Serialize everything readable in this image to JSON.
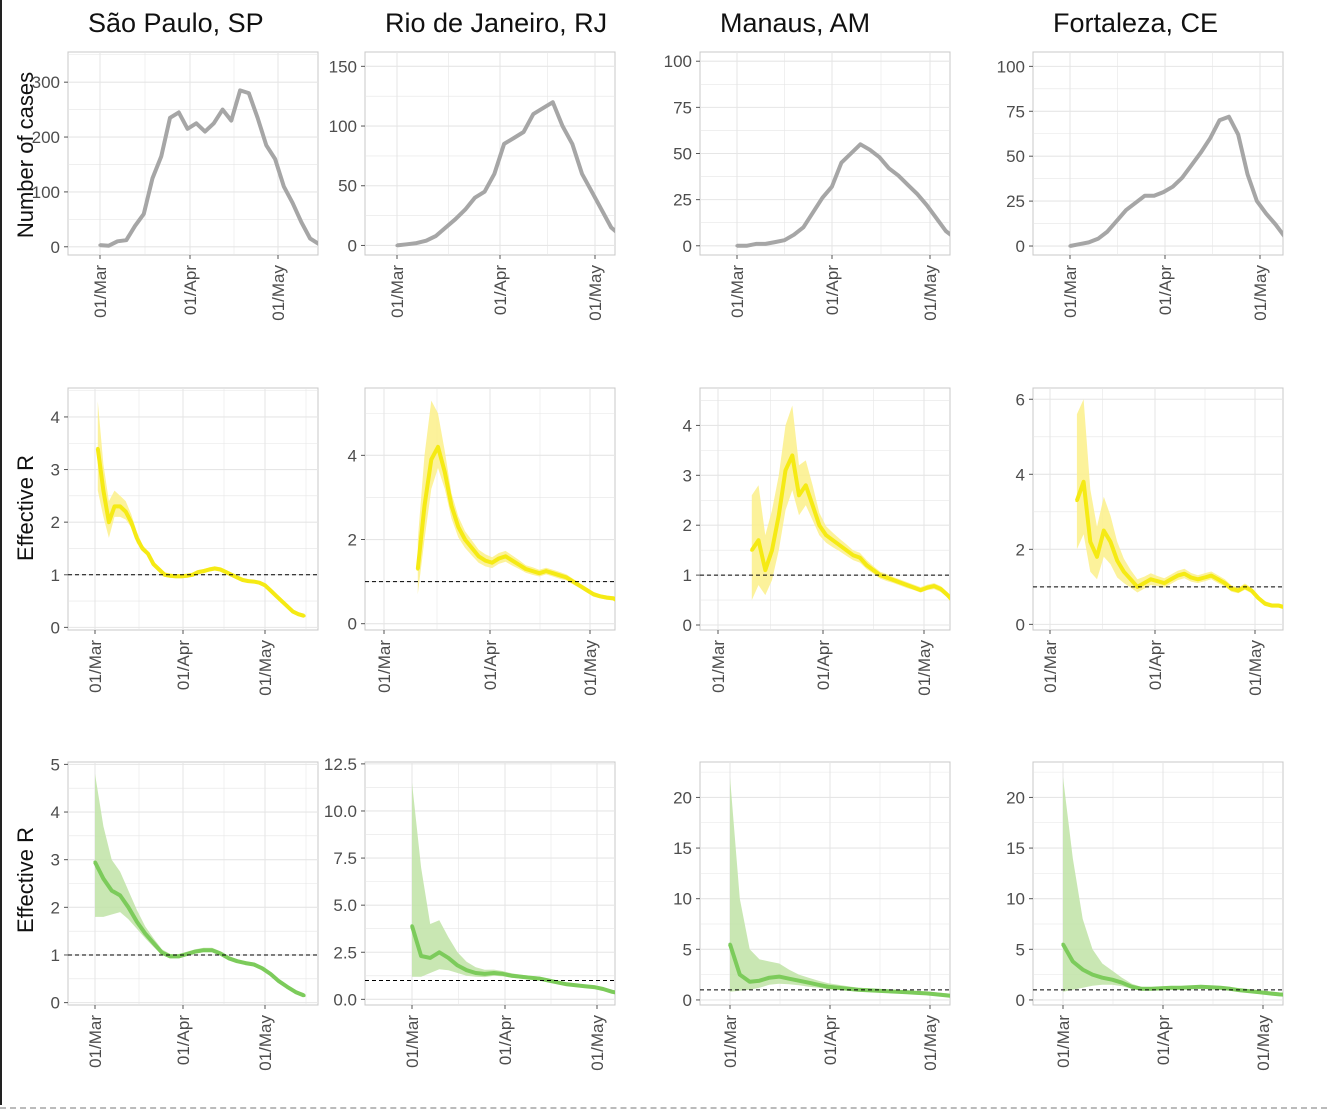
{
  "cities": [
    "São Paulo, SP",
    "Rio de Janeiro, RJ",
    "Manaus, AM",
    "Fortaleza, CE"
  ],
  "row_labels": [
    "Number of cases",
    "Effective R",
    "Effective R"
  ],
  "x_ticks": [
    "01/Mar",
    "01/Apr",
    "01/May"
  ],
  "colors": {
    "cases_line": "#a6a6a6",
    "r_yellow_line": "#f5ea14",
    "r_yellow_band": "#fbf08a",
    "r_green_line": "#7ccb5b",
    "r_green_band": "#bfe3a6",
    "grid": "#e6e6e6",
    "panel_border": "#c8c8c8",
    "reference_line": "#000000"
  },
  "chart_data": [
    {
      "type": "line",
      "row": 0,
      "city": "São Paulo, SP",
      "ylabel": "Number of cases",
      "ylim": [
        -15,
        355
      ],
      "yticks": [
        0,
        100,
        200,
        300
      ],
      "x": [
        0,
        3,
        6,
        9,
        12,
        15,
        18,
        21,
        24,
        27,
        30,
        33,
        36,
        39,
        42,
        45,
        48,
        51,
        54,
        57,
        60,
        63,
        66,
        69,
        72,
        75
      ],
      "values": [
        3,
        2,
        10,
        12,
        38,
        60,
        125,
        165,
        235,
        245,
        215,
        225,
        210,
        225,
        250,
        230,
        285,
        280,
        235,
        185,
        160,
        110,
        80,
        45,
        15,
        5
      ]
    },
    {
      "type": "line",
      "row": 0,
      "city": "Rio de Janeiro, RJ",
      "ylim": [
        -8,
        162
      ],
      "yticks": [
        0,
        50,
        100,
        150
      ],
      "x": [
        0,
        3,
        6,
        9,
        12,
        15,
        18,
        21,
        24,
        27,
        30,
        33,
        36,
        39,
        42,
        45,
        48,
        51,
        54,
        57,
        60,
        63,
        66,
        69,
        72,
        75
      ],
      "values": [
        0,
        1,
        2,
        4,
        8,
        15,
        22,
        30,
        40,
        45,
        60,
        85,
        90,
        95,
        110,
        115,
        120,
        100,
        85,
        60,
        45,
        30,
        15,
        8,
        4,
        2
      ]
    },
    {
      "type": "line",
      "row": 0,
      "city": "Manaus, AM",
      "ylim": [
        -5,
        105
      ],
      "yticks": [
        0,
        25,
        50,
        75,
        100
      ],
      "x": [
        0,
        3,
        6,
        9,
        12,
        15,
        18,
        21,
        24,
        27,
        30,
        33,
        36,
        39,
        42,
        45,
        48,
        51,
        54,
        57,
        60,
        63,
        66,
        69,
        72,
        75
      ],
      "values": [
        0,
        0,
        1,
        1,
        2,
        3,
        6,
        10,
        18,
        26,
        32,
        45,
        50,
        55,
        52,
        48,
        42,
        38,
        33,
        28,
        22,
        15,
        8,
        4,
        2,
        1
      ]
    },
    {
      "type": "line",
      "row": 0,
      "city": "Fortaleza, CE",
      "ylim": [
        -5,
        108
      ],
      "yticks": [
        0,
        25,
        50,
        75,
        100
      ],
      "x": [
        0,
        3,
        6,
        9,
        12,
        15,
        18,
        21,
        24,
        27,
        30,
        33,
        36,
        39,
        42,
        45,
        48,
        51,
        54,
        57,
        60,
        63,
        66,
        69,
        72,
        75
      ],
      "values": [
        0,
        1,
        2,
        4,
        8,
        14,
        20,
        24,
        28,
        28,
        30,
        33,
        38,
        45,
        52,
        60,
        70,
        72,
        62,
        40,
        25,
        18,
        12,
        5,
        2,
        1
      ]
    },
    {
      "type": "area",
      "row": 1,
      "city": "São Paulo, SP",
      "ylabel": "Effective R",
      "ylim": [
        -0.05,
        4.55
      ],
      "yticks": [
        0,
        1,
        2,
        3,
        4
      ],
      "ref": 1,
      "x": [
        1,
        3,
        5,
        7,
        9,
        11,
        13,
        15,
        17,
        19,
        21,
        23,
        25,
        27,
        29,
        31,
        33,
        35,
        37,
        39,
        41,
        43,
        45,
        47,
        49,
        51,
        53,
        55,
        57,
        59,
        61,
        63,
        65,
        67,
        69,
        71,
        73,
        75
      ],
      "values": [
        3.4,
        2.6,
        2.0,
        2.3,
        2.3,
        2.2,
        2.0,
        1.7,
        1.5,
        1.4,
        1.2,
        1.1,
        1.0,
        0.98,
        0.97,
        0.97,
        0.98,
        1.0,
        1.05,
        1.07,
        1.1,
        1.12,
        1.1,
        1.05,
        1.0,
        0.95,
        0.9,
        0.88,
        0.87,
        0.85,
        0.8,
        0.7,
        0.6,
        0.5,
        0.4,
        0.3,
        0.25,
        0.22
      ],
      "lower": [
        2.6,
        2.1,
        1.7,
        2.1,
        2.1,
        2.05,
        1.9,
        1.6,
        1.45,
        1.35,
        1.15,
        1.06,
        0.96,
        0.94,
        0.93,
        0.93,
        0.94,
        0.97,
        1.01,
        1.03,
        1.06,
        1.08,
        1.06,
        1.01,
        0.97,
        0.92,
        0.87,
        0.85,
        0.84,
        0.82,
        0.77,
        0.67,
        0.57,
        0.47,
        0.37,
        0.27,
        0.21,
        0.18
      ],
      "upper": [
        4.3,
        3.1,
        2.4,
        2.6,
        2.5,
        2.4,
        2.15,
        1.82,
        1.57,
        1.45,
        1.26,
        1.15,
        1.05,
        1.02,
        1.01,
        1.01,
        1.02,
        1.04,
        1.09,
        1.11,
        1.14,
        1.16,
        1.14,
        1.09,
        1.04,
        0.98,
        0.93,
        0.91,
        0.9,
        0.88,
        0.83,
        0.73,
        0.63,
        0.53,
        0.43,
        0.33,
        0.29,
        0.26
      ]
    },
    {
      "type": "area",
      "row": 1,
      "city": "Rio de Janeiro, RJ",
      "ylim": [
        -0.15,
        5.6
      ],
      "yticks": [
        0,
        2,
        4
      ],
      "ref": 1,
      "x": [
        10,
        12,
        14,
        16,
        18,
        20,
        22,
        24,
        26,
        28,
        30,
        32,
        34,
        36,
        38,
        40,
        42,
        44,
        46,
        48,
        50,
        52,
        54,
        56,
        58,
        60,
        62,
        64,
        66,
        68,
        70,
        72,
        74,
        76
      ],
      "values": [
        1.3,
        2.8,
        3.9,
        4.2,
        3.6,
        2.8,
        2.3,
        2.0,
        1.8,
        1.6,
        1.5,
        1.45,
        1.55,
        1.6,
        1.5,
        1.4,
        1.3,
        1.25,
        1.2,
        1.25,
        1.2,
        1.15,
        1.1,
        1.0,
        0.9,
        0.8,
        0.7,
        0.65,
        0.62,
        0.6,
        0.5,
        0.3,
        0.2,
        0.18
      ],
      "lower": [
        0.7,
        2.0,
        3.2,
        3.7,
        3.2,
        2.5,
        2.05,
        1.8,
        1.62,
        1.45,
        1.36,
        1.32,
        1.42,
        1.47,
        1.38,
        1.3,
        1.21,
        1.16,
        1.12,
        1.17,
        1.12,
        1.07,
        1.03,
        0.93,
        0.84,
        0.74,
        0.64,
        0.6,
        0.57,
        0.55,
        0.45,
        0.25,
        0.15,
        0.13
      ],
      "upper": [
        2.0,
        4.0,
        5.3,
        5.0,
        4.1,
        3.1,
        2.55,
        2.2,
        1.98,
        1.76,
        1.65,
        1.58,
        1.68,
        1.73,
        1.62,
        1.51,
        1.39,
        1.34,
        1.28,
        1.33,
        1.28,
        1.23,
        1.17,
        1.07,
        0.96,
        0.86,
        0.76,
        0.7,
        0.67,
        0.65,
        0.55,
        0.35,
        0.25,
        0.23
      ]
    },
    {
      "type": "area",
      "row": 1,
      "city": "Manaus, AM",
      "ylim": [
        -0.1,
        4.75
      ],
      "yticks": [
        0,
        1,
        2,
        3,
        4
      ],
      "ref": 1,
      "x": [
        10,
        12,
        14,
        16,
        18,
        20,
        22,
        24,
        26,
        28,
        30,
        32,
        34,
        36,
        38,
        40,
        42,
        44,
        46,
        48,
        50,
        52,
        54,
        56,
        58,
        60,
        62,
        64,
        66,
        68,
        70,
        72,
        74,
        76
      ],
      "values": [
        1.5,
        1.7,
        1.1,
        1.5,
        2.2,
        3.1,
        3.4,
        2.6,
        2.8,
        2.4,
        2.0,
        1.8,
        1.7,
        1.6,
        1.5,
        1.4,
        1.35,
        1.2,
        1.1,
        1.0,
        0.95,
        0.9,
        0.85,
        0.8,
        0.75,
        0.7,
        0.75,
        0.78,
        0.72,
        0.6,
        0.45,
        0.3,
        0.28,
        0.25
      ],
      "lower": [
        0.5,
        0.8,
        0.6,
        0.9,
        1.5,
        2.3,
        2.7,
        2.2,
        2.4,
        2.1,
        1.8,
        1.65,
        1.56,
        1.48,
        1.39,
        1.3,
        1.25,
        1.12,
        1.03,
        0.93,
        0.88,
        0.84,
        0.79,
        0.74,
        0.7,
        0.65,
        0.7,
        0.72,
        0.66,
        0.55,
        0.4,
        0.22,
        0.2,
        0.15
      ],
      "upper": [
        2.6,
        2.8,
        1.8,
        2.3,
        3.0,
        4.0,
        4.4,
        3.2,
        3.3,
        2.8,
        2.25,
        1.98,
        1.85,
        1.73,
        1.62,
        1.5,
        1.45,
        1.3,
        1.18,
        1.07,
        1.02,
        0.96,
        0.91,
        0.86,
        0.81,
        0.76,
        0.81,
        0.84,
        0.78,
        0.66,
        0.5,
        0.38,
        0.36,
        0.35
      ]
    },
    {
      "type": "area",
      "row": 1,
      "city": "Fortaleza, CE",
      "ylim": [
        -0.15,
        6.3
      ],
      "yticks": [
        0,
        2,
        4,
        6
      ],
      "ref": 1,
      "x": [
        8,
        10,
        12,
        14,
        16,
        18,
        20,
        22,
        24,
        26,
        28,
        30,
        32,
        34,
        36,
        38,
        40,
        42,
        44,
        46,
        48,
        50,
        52,
        54,
        56,
        58,
        60,
        62,
        64,
        66,
        68,
        70,
        72,
        74
      ],
      "values": [
        3.3,
        3.8,
        2.2,
        1.8,
        2.5,
        2.2,
        1.7,
        1.4,
        1.2,
        1.0,
        1.1,
        1.2,
        1.15,
        1.1,
        1.2,
        1.3,
        1.35,
        1.25,
        1.2,
        1.25,
        1.3,
        1.2,
        1.1,
        0.95,
        0.9,
        1.0,
        0.9,
        0.7,
        0.55,
        0.5,
        0.5,
        0.45,
        0.35,
        0.3
      ],
      "lower": [
        2.0,
        2.4,
        1.4,
        1.2,
        1.8,
        1.6,
        1.25,
        1.1,
        0.98,
        0.85,
        0.95,
        1.05,
        1.02,
        0.98,
        1.08,
        1.18,
        1.23,
        1.14,
        1.1,
        1.15,
        1.2,
        1.1,
        1.01,
        0.87,
        0.83,
        0.92,
        0.83,
        0.64,
        0.49,
        0.45,
        0.45,
        0.4,
        0.3,
        0.25
      ],
      "upper": [
        5.6,
        6.0,
        3.6,
        2.6,
        3.4,
        2.9,
        2.2,
        1.75,
        1.45,
        1.2,
        1.27,
        1.36,
        1.29,
        1.23,
        1.33,
        1.43,
        1.48,
        1.37,
        1.31,
        1.36,
        1.41,
        1.31,
        1.2,
        1.04,
        0.98,
        1.09,
        0.98,
        0.77,
        0.62,
        0.56,
        0.56,
        0.51,
        0.41,
        0.36
      ]
    },
    {
      "type": "area",
      "row": 2,
      "city": "São Paulo, SP",
      "ylabel": "Effective R",
      "ylim": [
        -0.05,
        5.05
      ],
      "yticks": [
        0,
        1,
        2,
        3,
        4,
        5
      ],
      "ref": 1,
      "x": [
        0,
        3,
        6,
        9,
        12,
        15,
        18,
        21,
        24,
        27,
        30,
        33,
        36,
        39,
        42,
        45,
        48,
        51,
        54,
        57,
        60,
        63,
        66,
        69,
        72,
        75
      ],
      "values": [
        2.95,
        2.6,
        2.35,
        2.25,
        2.0,
        1.7,
        1.45,
        1.25,
        1.05,
        0.97,
        0.97,
        1.02,
        1.07,
        1.1,
        1.1,
        1.03,
        0.93,
        0.87,
        0.83,
        0.8,
        0.72,
        0.6,
        0.45,
        0.33,
        0.22,
        0.15
      ],
      "lower": [
        1.8,
        1.8,
        1.85,
        1.9,
        1.75,
        1.55,
        1.35,
        1.17,
        1.0,
        0.93,
        0.93,
        0.98,
        1.03,
        1.06,
        1.06,
        0.99,
        0.9,
        0.84,
        0.8,
        0.77,
        0.69,
        0.57,
        0.42,
        0.3,
        0.19,
        0.12
      ],
      "upper": [
        4.8,
        3.7,
        3.0,
        2.75,
        2.35,
        1.95,
        1.6,
        1.35,
        1.12,
        1.02,
        1.02,
        1.07,
        1.12,
        1.15,
        1.15,
        1.08,
        0.97,
        0.91,
        0.87,
        0.84,
        0.76,
        0.64,
        0.49,
        0.37,
        0.26,
        0.2
      ]
    },
    {
      "type": "area",
      "row": 2,
      "city": "Rio de Janeiro, RJ",
      "ylim": [
        -0.3,
        12.6
      ],
      "yticks": [
        0,
        2.5,
        5.0,
        7.5,
        10.0,
        12.5
      ],
      "ref": 1,
      "x": [
        0,
        3,
        6,
        9,
        12,
        15,
        18,
        21,
        24,
        27,
        30,
        33,
        36,
        39,
        42,
        45,
        48,
        51,
        54,
        57,
        60,
        63,
        66,
        69,
        72,
        75
      ],
      "values": [
        3.9,
        2.3,
        2.2,
        2.5,
        2.2,
        1.8,
        1.55,
        1.4,
        1.35,
        1.4,
        1.35,
        1.25,
        1.2,
        1.15,
        1.1,
        1.0,
        0.9,
        0.8,
        0.75,
        0.7,
        0.65,
        0.55,
        0.4,
        0.3,
        0.3,
        0.4
      ],
      "lower": [
        1.2,
        1.2,
        1.4,
        1.6,
        1.55,
        1.4,
        1.25,
        1.2,
        1.18,
        1.25,
        1.22,
        1.14,
        1.1,
        1.06,
        1.01,
        0.93,
        0.84,
        0.74,
        0.69,
        0.64,
        0.58,
        0.48,
        0.32,
        0.2,
        0.15,
        0.2
      ],
      "upper": [
        11.5,
        7.0,
        4.0,
        4.2,
        3.3,
        2.5,
        2.0,
        1.7,
        1.57,
        1.58,
        1.5,
        1.38,
        1.31,
        1.25,
        1.2,
        1.08,
        0.97,
        0.87,
        0.82,
        0.77,
        0.73,
        0.63,
        0.5,
        0.45,
        0.5,
        0.7
      ]
    },
    {
      "type": "area",
      "row": 2,
      "city": "Manaus, AM",
      "ylim": [
        -0.5,
        23.5
      ],
      "yticks": [
        0,
        5,
        10,
        15,
        20
      ],
      "ref": 1,
      "x": [
        0,
        3,
        6,
        9,
        12,
        15,
        18,
        21,
        24,
        27,
        30,
        33,
        36,
        39,
        42,
        45,
        48,
        51,
        54,
        57,
        60,
        63,
        66,
        69,
        72,
        75
      ],
      "values": [
        5.5,
        2.5,
        1.8,
        1.9,
        2.2,
        2.3,
        2.1,
        1.9,
        1.7,
        1.5,
        1.3,
        1.2,
        1.1,
        1.0,
        0.95,
        0.9,
        0.85,
        0.8,
        0.75,
        0.7,
        0.65,
        0.55,
        0.45,
        0.35,
        0.4,
        1.0
      ],
      "lower": [
        0.8,
        0.9,
        1.0,
        1.2,
        1.5,
        1.6,
        1.55,
        1.45,
        1.3,
        1.2,
        1.05,
        0.98,
        0.9,
        0.83,
        0.79,
        0.75,
        0.71,
        0.66,
        0.61,
        0.56,
        0.5,
        0.4,
        0.3,
        0.2,
        0.2,
        0.3
      ],
      "upper": [
        22.0,
        10.0,
        5.0,
        4.0,
        3.8,
        3.6,
        3.0,
        2.5,
        2.2,
        1.9,
        1.65,
        1.5,
        1.35,
        1.22,
        1.15,
        1.08,
        1.02,
        0.96,
        0.91,
        0.86,
        0.82,
        0.74,
        0.66,
        0.6,
        0.8,
        2.0
      ]
    },
    {
      "type": "area",
      "row": 2,
      "city": "Fortaleza, CE",
      "ylim": [
        -0.5,
        23.5
      ],
      "yticks": [
        0,
        5,
        10,
        15,
        20
      ],
      "ref": 1,
      "x": [
        0,
        3,
        6,
        9,
        12,
        15,
        18,
        21,
        24,
        27,
        30,
        33,
        36,
        39,
        42,
        45,
        48,
        51,
        54,
        57,
        60,
        63,
        66,
        69,
        72,
        75
      ],
      "values": [
        5.5,
        3.8,
        3.0,
        2.5,
        2.2,
        2.0,
        1.7,
        1.3,
        1.1,
        1.1,
        1.15,
        1.2,
        1.2,
        1.25,
        1.3,
        1.25,
        1.2,
        1.1,
        0.95,
        0.85,
        0.75,
        0.65,
        0.55,
        0.5,
        0.45,
        0.4
      ],
      "lower": [
        0.8,
        1.0,
        1.2,
        1.4,
        1.5,
        1.5,
        1.35,
        1.1,
        0.98,
        0.99,
        1.04,
        1.09,
        1.1,
        1.15,
        1.2,
        1.15,
        1.11,
        1.02,
        0.88,
        0.78,
        0.68,
        0.58,
        0.48,
        0.43,
        0.38,
        0.32
      ],
      "upper": [
        22.0,
        14.0,
        8.0,
        5.0,
        3.6,
        2.9,
        2.2,
        1.6,
        1.28,
        1.22,
        1.27,
        1.32,
        1.31,
        1.36,
        1.41,
        1.36,
        1.3,
        1.19,
        1.03,
        0.93,
        0.83,
        0.73,
        0.63,
        0.58,
        0.53,
        0.5
      ]
    }
  ]
}
